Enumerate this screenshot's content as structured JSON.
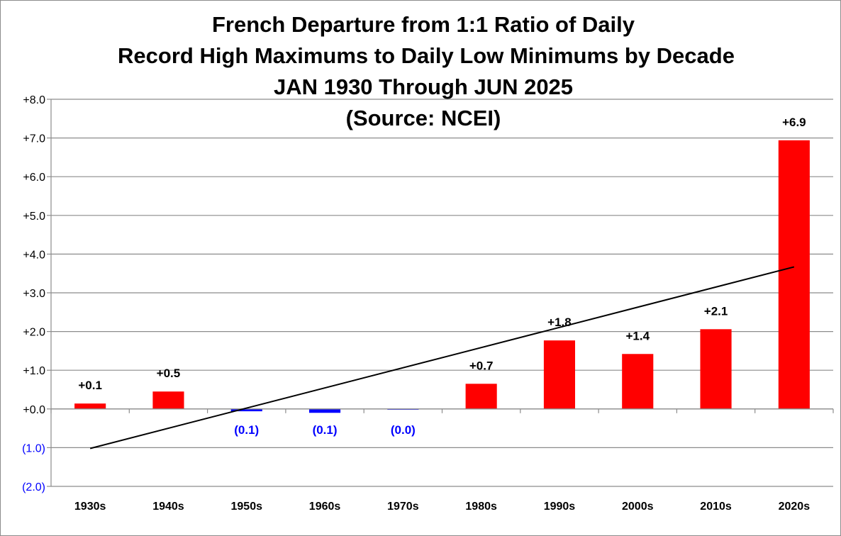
{
  "chart_data": {
    "type": "bar",
    "title_lines": [
      "French Departure from 1:1 Ratio of Daily",
      "Record High Maximums to Daily Low Minimums by Decade",
      "JAN 1930 Through JUN 2025",
      "(Source: NCEI)"
    ],
    "xlabel": "",
    "ylabel": "",
    "categories": [
      "1930s",
      "1940s",
      "1950s",
      "1960s",
      "1970s",
      "1980s",
      "1990s",
      "2000s",
      "2010s",
      "2020s"
    ],
    "values": [
      0.14,
      0.45,
      -0.06,
      -0.1,
      -0.02,
      0.65,
      1.77,
      1.42,
      2.06,
      6.94
    ],
    "data_labels": [
      "+0.1",
      "+0.5",
      "(0.1)",
      "(0.1)",
      "(0.0)",
      "+0.7",
      "+1.8",
      "+1.4",
      "+2.1",
      "+6.9"
    ],
    "ylim": [
      -2,
      8
    ],
    "y_ticks": [
      8,
      7,
      6,
      5,
      4,
      3,
      2,
      1,
      0,
      -1,
      -2
    ],
    "y_tick_labels": [
      "+8.0",
      "+7.0",
      "+6.0",
      "+5.0",
      "+4.0",
      "+3.0",
      "+2.0",
      "+1.0",
      "+0.0",
      "(1.0)",
      "(2.0)"
    ],
    "grid": true,
    "legend": "none",
    "trendline": {
      "type": "linear",
      "start": [
        1,
        -1.02
      ],
      "end": [
        10,
        3.67
      ]
    },
    "colors": {
      "positive": "#ff0000",
      "negative": "#0000ff",
      "negative_tick_label": "#0000ff",
      "trendline": "#000000",
      "grid": "#8c8c8c"
    }
  }
}
